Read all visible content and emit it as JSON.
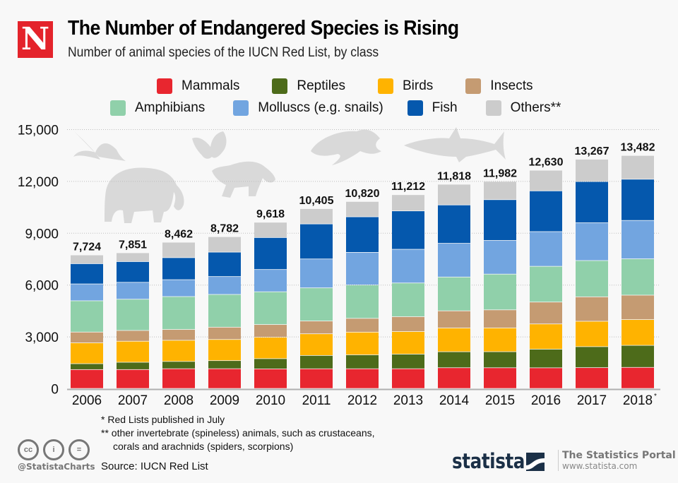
{
  "header": {
    "logo_letter": "N",
    "title": "The Number of Endangered Species is Rising",
    "subtitle": "Number of animal species of the IUCN Red List, by class"
  },
  "legend": {
    "row1": [
      {
        "label": "Mammals",
        "color": "#e8262f"
      },
      {
        "label": "Reptiles",
        "color": "#4d6b1a"
      },
      {
        "label": "Birds",
        "color": "#ffb300"
      },
      {
        "label": "Insects",
        "color": "#c59b72"
      }
    ],
    "row2": [
      {
        "label": "Amphibians",
        "color": "#90d0aa"
      },
      {
        "label": "Molluscs (e.g. snails)",
        "color": "#72a5e0"
      },
      {
        "label": "Fish",
        "color": "#0558ad"
      },
      {
        "label": "Others**",
        "color": "#cccccc"
      }
    ]
  },
  "chart_data": {
    "type": "bar",
    "stacked": true,
    "title": "The Number of Endangered Species is Rising",
    "subtitle": "Number of animal species of the IUCN Red List, by class",
    "xlabel": "",
    "ylabel": "",
    "ylim": [
      0,
      15000
    ],
    "yticks": [
      0,
      3000,
      6000,
      9000,
      12000,
      15000
    ],
    "ytick_labels": [
      "0",
      "3,000",
      "6,000",
      "9,000",
      "12,000",
      "15,000"
    ],
    "grid": true,
    "legend_position": "top",
    "categories": [
      "2006",
      "2007",
      "2008",
      "2009",
      "2010",
      "2011",
      "2012",
      "2013",
      "2014",
      "2015",
      "2016",
      "2017",
      "2018*"
    ],
    "totals": [
      7724,
      7851,
      8462,
      8782,
      9618,
      10405,
      10820,
      11212,
      11818,
      11982,
      12630,
      13267,
      13482
    ],
    "total_labels": [
      "7,724",
      "7,851",
      "8,462",
      "8,782",
      "9,618",
      "10,405",
      "10,820",
      "11,212",
      "11,818",
      "11,982",
      "12,630",
      "13,267",
      "13,482"
    ],
    "series": [
      {
        "name": "Mammals",
        "color": "#e8262f",
        "values": [
          1093,
          1094,
          1141,
          1142,
          1131,
          1138,
          1139,
          1140,
          1199,
          1197,
          1194,
          1204,
          1219
        ]
      },
      {
        "name": "Reptiles",
        "color": "#4d6b1a",
        "values": [
          341,
          422,
          423,
          469,
          594,
          772,
          807,
          847,
          927,
          931,
          1079,
          1215,
          1275
        ]
      },
      {
        "name": "Birds",
        "color": "#ffb300",
        "values": [
          1206,
          1217,
          1222,
          1223,
          1240,
          1253,
          1313,
          1308,
          1373,
          1375,
          1460,
          1469,
          1492
        ]
      },
      {
        "name": "Insects",
        "color": "#c59b72",
        "values": [
          623,
          623,
          626,
          711,
          733,
          741,
          797,
          859,
          993,
          1046,
          1268,
          1414,
          1414
        ]
      },
      {
        "name": "Amphibians",
        "color": "#90d0aa",
        "values": [
          1811,
          1808,
          1905,
          1895,
          1898,
          1917,
          1933,
          1950,
          1957,
          2068,
          2068,
          2100,
          2100
        ]
      },
      {
        "name": "Molluscs (e.g. snails)",
        "color": "#72a5e0",
        "values": [
          975,
          978,
          978,
          1036,
          1288,
          1673,
          1887,
          1950,
          1950,
          1950,
          2008,
          2187,
          2224
        ]
      },
      {
        "name": "Fish",
        "color": "#0558ad",
        "values": [
          1173,
          1201,
          1275,
          1414,
          1851,
          2028,
          2058,
          2222,
          2222,
          2359,
          2359,
          2386,
          2386
        ]
      },
      {
        "name": "Others**",
        "color": "#cccccc",
        "values": [
          502,
          508,
          892,
          892,
          883,
          883,
          886,
          936,
          1197,
          1056,
          1194,
          1292,
          1372
        ]
      }
    ]
  },
  "footnotes": {
    "note1": "*   Red Lists published in July",
    "note2_line1": "** other invertebrate (spineless) animals, such as crustaceans,",
    "note2_line2": "corals and arachnids (spiders, scorpions)",
    "source": "Source: IUCN Red List"
  },
  "branding": {
    "handle": "@StatistaCharts",
    "cc_icons": [
      "cc",
      "i",
      "="
    ],
    "statista": "statista",
    "portal_title": "The Statistics Portal",
    "portal_url": "www.statista.com"
  }
}
